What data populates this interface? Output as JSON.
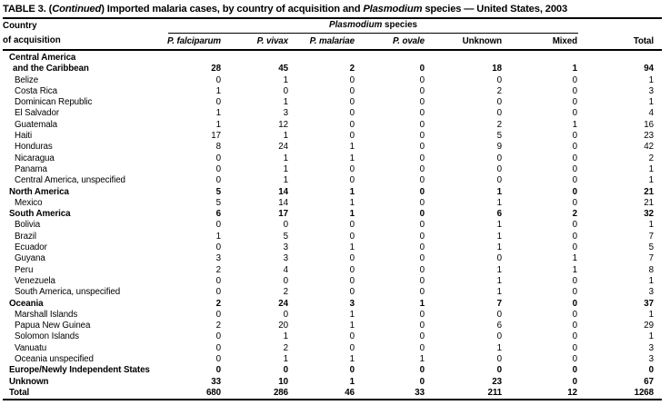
{
  "title": {
    "part1": "TABLE 3. (",
    "part2_italic": "Continued",
    "part3": ") Imported malaria cases, by country of acquisition and ",
    "part4_italic": "Plasmodium",
    "part5": " species — United States, 2003"
  },
  "header": {
    "country_line1": "Country",
    "country_line2": "of acquisition",
    "species_group_italic": "Plasmodium",
    "species_group_rest": " species",
    "columns": [
      {
        "label": "P. falciparum",
        "italic": true
      },
      {
        "label": "P. vivax",
        "italic": true
      },
      {
        "label": "P. malariae",
        "italic": true
      },
      {
        "label": "P. ovale",
        "italic": true
      },
      {
        "label": "Unknown",
        "italic": false
      },
      {
        "label": "Mixed",
        "italic": false
      },
      {
        "label": "Total",
        "italic": false
      }
    ]
  },
  "rows": [
    {
      "label": "Central America",
      "indent": 0,
      "bold": true,
      "values": [
        "",
        "",
        "",
        "",
        "",
        "",
        ""
      ]
    },
    {
      "label": "and the Caribbean",
      "indent": 1,
      "bold": true,
      "values": [
        28,
        45,
        2,
        0,
        18,
        1,
        94
      ]
    },
    {
      "label": "Belize",
      "indent": 2,
      "bold": false,
      "values": [
        0,
        1,
        0,
        0,
        0,
        0,
        1
      ]
    },
    {
      "label": "Costa Rica",
      "indent": 2,
      "bold": false,
      "values": [
        1,
        0,
        0,
        0,
        2,
        0,
        3
      ]
    },
    {
      "label": "Dominican Republic",
      "indent": 2,
      "bold": false,
      "values": [
        0,
        1,
        0,
        0,
        0,
        0,
        1
      ]
    },
    {
      "label": "El Salvador",
      "indent": 2,
      "bold": false,
      "values": [
        1,
        3,
        0,
        0,
        0,
        0,
        4
      ]
    },
    {
      "label": "Guatemala",
      "indent": 2,
      "bold": false,
      "values": [
        1,
        12,
        0,
        0,
        2,
        1,
        16
      ]
    },
    {
      "label": "Haiti",
      "indent": 2,
      "bold": false,
      "values": [
        17,
        1,
        0,
        0,
        5,
        0,
        23
      ]
    },
    {
      "label": "Honduras",
      "indent": 2,
      "bold": false,
      "values": [
        8,
        24,
        1,
        0,
        9,
        0,
        42
      ]
    },
    {
      "label": "Nicaragua",
      "indent": 2,
      "bold": false,
      "values": [
        0,
        1,
        1,
        0,
        0,
        0,
        2
      ]
    },
    {
      "label": "Panama",
      "indent": 2,
      "bold": false,
      "values": [
        0,
        1,
        0,
        0,
        0,
        0,
        1
      ]
    },
    {
      "label": "Central America, unspecified",
      "indent": 2,
      "bold": false,
      "values": [
        0,
        1,
        0,
        0,
        0,
        0,
        1
      ]
    },
    {
      "label": "North America",
      "indent": 0,
      "bold": true,
      "values": [
        5,
        14,
        1,
        0,
        1,
        0,
        21
      ]
    },
    {
      "label": "Mexico",
      "indent": 2,
      "bold": false,
      "values": [
        5,
        14,
        1,
        0,
        1,
        0,
        21
      ]
    },
    {
      "label": "South America",
      "indent": 0,
      "bold": true,
      "values": [
        6,
        17,
        1,
        0,
        6,
        2,
        32
      ]
    },
    {
      "label": "Bolivia",
      "indent": 2,
      "bold": false,
      "values": [
        0,
        0,
        0,
        0,
        1,
        0,
        1
      ]
    },
    {
      "label": "Brazil",
      "indent": 2,
      "bold": false,
      "values": [
        1,
        5,
        0,
        0,
        1,
        0,
        7
      ]
    },
    {
      "label": "Ecuador",
      "indent": 2,
      "bold": false,
      "values": [
        0,
        3,
        1,
        0,
        1,
        0,
        5
      ]
    },
    {
      "label": "Guyana",
      "indent": 2,
      "bold": false,
      "values": [
        3,
        3,
        0,
        0,
        0,
        1,
        7
      ]
    },
    {
      "label": "Peru",
      "indent": 2,
      "bold": false,
      "values": [
        2,
        4,
        0,
        0,
        1,
        1,
        8
      ]
    },
    {
      "label": "Venezuela",
      "indent": 2,
      "bold": false,
      "values": [
        0,
        0,
        0,
        0,
        1,
        0,
        1
      ]
    },
    {
      "label": "South America, unspecified",
      "indent": 2,
      "bold": false,
      "values": [
        0,
        2,
        0,
        0,
        1,
        0,
        3
      ]
    },
    {
      "label": "Oceania",
      "indent": 0,
      "bold": true,
      "values": [
        2,
        24,
        3,
        1,
        7,
        0,
        37
      ]
    },
    {
      "label": "Marshall Islands",
      "indent": 2,
      "bold": false,
      "values": [
        0,
        0,
        1,
        0,
        0,
        0,
        1
      ]
    },
    {
      "label": "Papua New Guinea",
      "indent": 2,
      "bold": false,
      "values": [
        2,
        20,
        1,
        0,
        6,
        0,
        29
      ]
    },
    {
      "label": "Solomon Islands",
      "indent": 2,
      "bold": false,
      "values": [
        0,
        1,
        0,
        0,
        0,
        0,
        1
      ]
    },
    {
      "label": "Vanuatu",
      "indent": 2,
      "bold": false,
      "values": [
        0,
        2,
        0,
        0,
        1,
        0,
        3
      ]
    },
    {
      "label": "Oceania unspecified",
      "indent": 2,
      "bold": false,
      "values": [
        0,
        1,
        1,
        1,
        0,
        0,
        3
      ]
    },
    {
      "label": "Europe/Newly Independent States",
      "indent": 0,
      "bold": true,
      "values": [
        0,
        0,
        0,
        0,
        0,
        0,
        0
      ]
    },
    {
      "label": "Unknown",
      "indent": 0,
      "bold": true,
      "values": [
        33,
        10,
        1,
        0,
        23,
        0,
        67
      ]
    },
    {
      "label": "Total",
      "indent": 0,
      "bold": true,
      "values": [
        680,
        286,
        46,
        33,
        211,
        12,
        1268
      ]
    }
  ]
}
